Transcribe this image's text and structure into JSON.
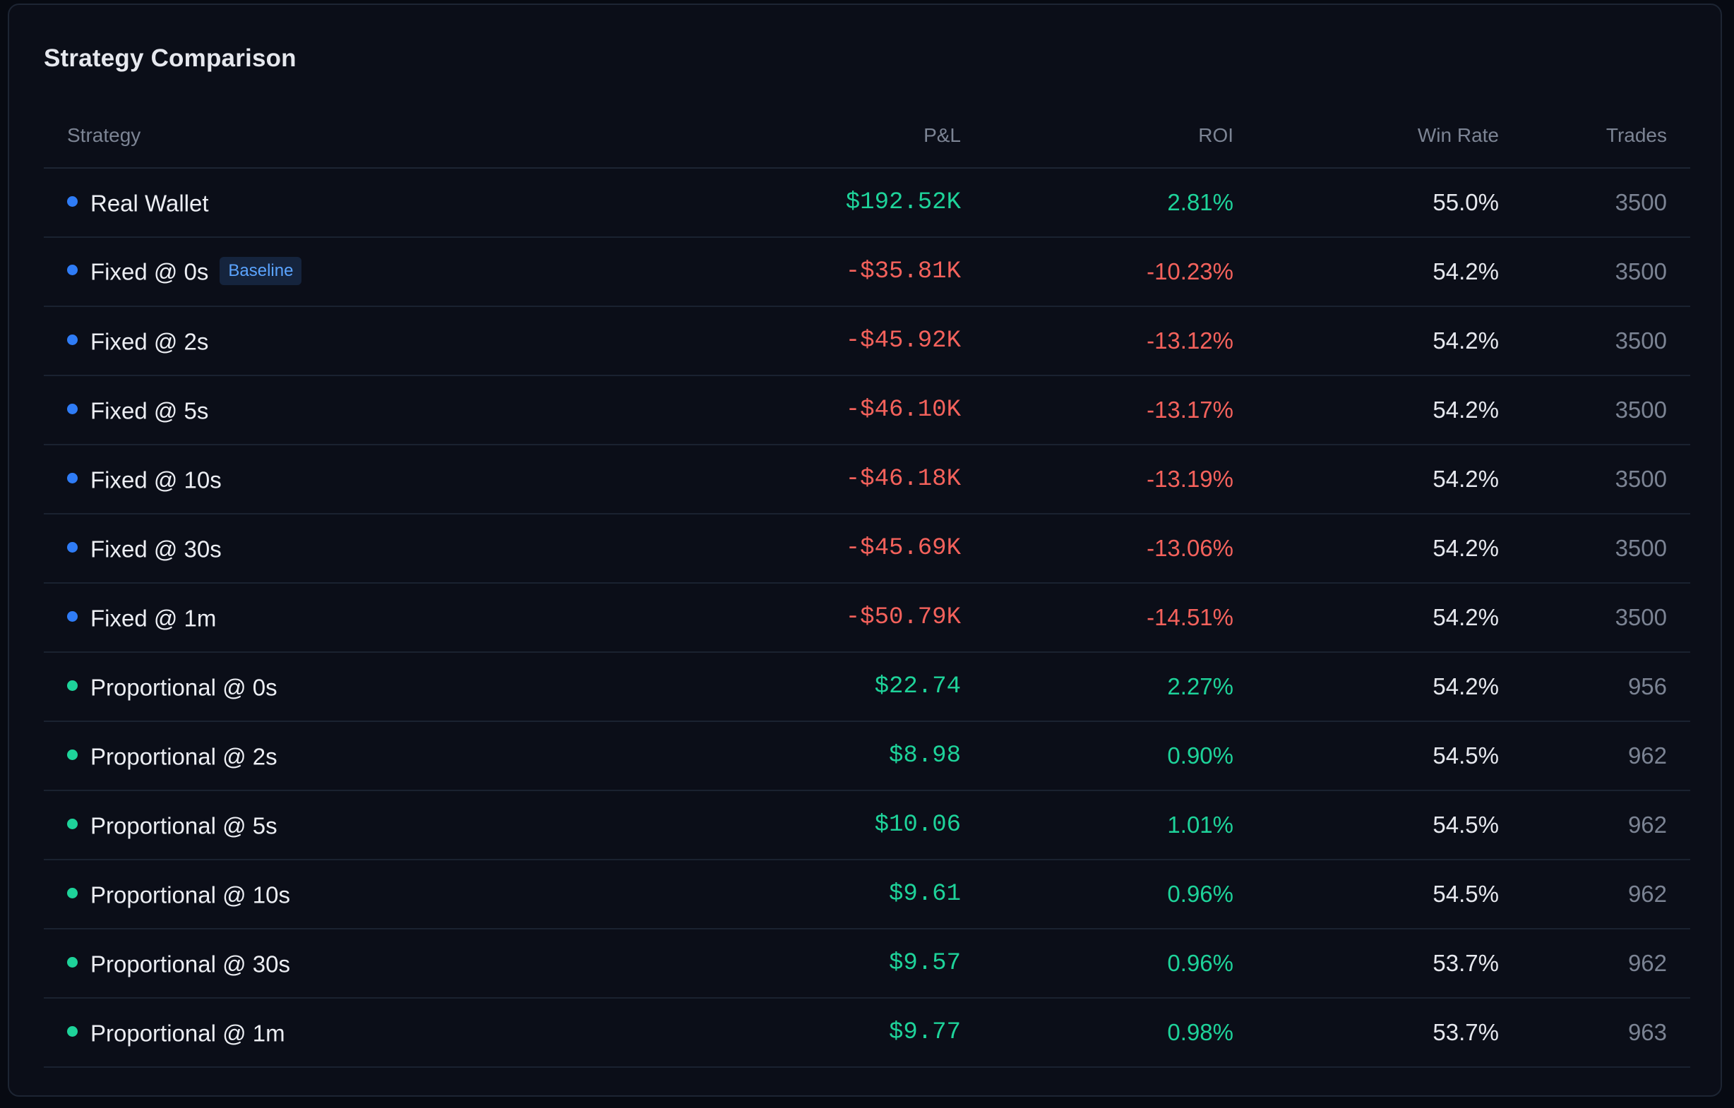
{
  "card": {
    "title": "Strategy Comparison"
  },
  "table": {
    "headers": {
      "strategy": "Strategy",
      "pl": "P&L",
      "roi": "ROI",
      "win_rate": "Win Rate",
      "trades": "Trades"
    },
    "colors": {
      "dot_fixed": "#2f7cf6",
      "dot_proportional": "#1ed39a",
      "positive": "#1ed39a",
      "negative": "#f5625c"
    },
    "rows": [
      {
        "name": "Real Wallet",
        "badge": "",
        "dot": "blue",
        "pl": "$192.52K",
        "roi": "2.81%",
        "win_rate": "55.0%",
        "trades": "3500",
        "sign": "pos"
      },
      {
        "name": "Fixed @ 0s",
        "badge": "Baseline",
        "dot": "blue",
        "pl": "-$35.81K",
        "roi": "-10.23%",
        "win_rate": "54.2%",
        "trades": "3500",
        "sign": "neg"
      },
      {
        "name": "Fixed @ 2s",
        "badge": "",
        "dot": "blue",
        "pl": "-$45.92K",
        "roi": "-13.12%",
        "win_rate": "54.2%",
        "trades": "3500",
        "sign": "neg"
      },
      {
        "name": "Fixed @ 5s",
        "badge": "",
        "dot": "blue",
        "pl": "-$46.10K",
        "roi": "-13.17%",
        "win_rate": "54.2%",
        "trades": "3500",
        "sign": "neg"
      },
      {
        "name": "Fixed @ 10s",
        "badge": "",
        "dot": "blue",
        "pl": "-$46.18K",
        "roi": "-13.19%",
        "win_rate": "54.2%",
        "trades": "3500",
        "sign": "neg"
      },
      {
        "name": "Fixed @ 30s",
        "badge": "",
        "dot": "blue",
        "pl": "-$45.69K",
        "roi": "-13.06%",
        "win_rate": "54.2%",
        "trades": "3500",
        "sign": "neg"
      },
      {
        "name": "Fixed @ 1m",
        "badge": "",
        "dot": "blue",
        "pl": "-$50.79K",
        "roi": "-14.51%",
        "win_rate": "54.2%",
        "trades": "3500",
        "sign": "neg"
      },
      {
        "name": "Proportional @ 0s",
        "badge": "",
        "dot": "green",
        "pl": "$22.74",
        "roi": "2.27%",
        "win_rate": "54.2%",
        "trades": "956",
        "sign": "pos"
      },
      {
        "name": "Proportional @ 2s",
        "badge": "",
        "dot": "green",
        "pl": "$8.98",
        "roi": "0.90%",
        "win_rate": "54.5%",
        "trades": "962",
        "sign": "pos"
      },
      {
        "name": "Proportional @ 5s",
        "badge": "",
        "dot": "green",
        "pl": "$10.06",
        "roi": "1.01%",
        "win_rate": "54.5%",
        "trades": "962",
        "sign": "pos"
      },
      {
        "name": "Proportional @ 10s",
        "badge": "",
        "dot": "green",
        "pl": "$9.61",
        "roi": "0.96%",
        "win_rate": "54.5%",
        "trades": "962",
        "sign": "pos"
      },
      {
        "name": "Proportional @ 30s",
        "badge": "",
        "dot": "green",
        "pl": "$9.57",
        "roi": "0.96%",
        "win_rate": "53.7%",
        "trades": "962",
        "sign": "pos"
      },
      {
        "name": "Proportional @ 1m",
        "badge": "",
        "dot": "green",
        "pl": "$9.77",
        "roi": "0.98%",
        "win_rate": "53.7%",
        "trades": "963",
        "sign": "pos"
      }
    ]
  }
}
